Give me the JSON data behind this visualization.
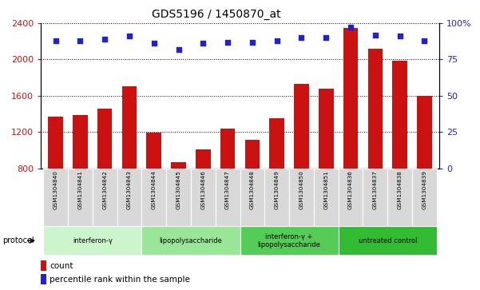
{
  "title": "GDS5196 / 1450870_at",
  "samples": [
    "GSM1304840",
    "GSM1304841",
    "GSM1304842",
    "GSM1304843",
    "GSM1304844",
    "GSM1304845",
    "GSM1304846",
    "GSM1304847",
    "GSM1304848",
    "GSM1304849",
    "GSM1304850",
    "GSM1304851",
    "GSM1304836",
    "GSM1304837",
    "GSM1304838",
    "GSM1304839"
  ],
  "counts": [
    1370,
    1390,
    1460,
    1700,
    1190,
    870,
    1010,
    1240,
    1110,
    1350,
    1730,
    1680,
    2350,
    2120,
    1990,
    1600
  ],
  "percentile_ranks": [
    88,
    88,
    89,
    91,
    86,
    82,
    86,
    87,
    87,
    88,
    90,
    90,
    97,
    92,
    91,
    88
  ],
  "groups": [
    {
      "label": "interferon-γ",
      "start": 0,
      "end": 3,
      "color": "#ccf5cc"
    },
    {
      "label": "lipopolysaccharide",
      "start": 4,
      "end": 7,
      "color": "#99e699"
    },
    {
      "label": "interferon-γ +\nlipopolysaccharide",
      "start": 8,
      "end": 11,
      "color": "#55cc55"
    },
    {
      "label": "untreated control",
      "start": 12,
      "end": 15,
      "color": "#33bb33"
    }
  ],
  "ylim_left": [
    800,
    2400
  ],
  "ylim_right": [
    0,
    100
  ],
  "yticks_left": [
    800,
    1200,
    1600,
    2000,
    2400
  ],
  "yticks_right": [
    0,
    25,
    50,
    75,
    100
  ],
  "bar_color": "#cc1111",
  "dot_color": "#2222cc",
  "sample_box_color": "#d8d8d8",
  "title_fontsize": 10,
  "tick_fontsize": 7,
  "label_fontsize": 7
}
